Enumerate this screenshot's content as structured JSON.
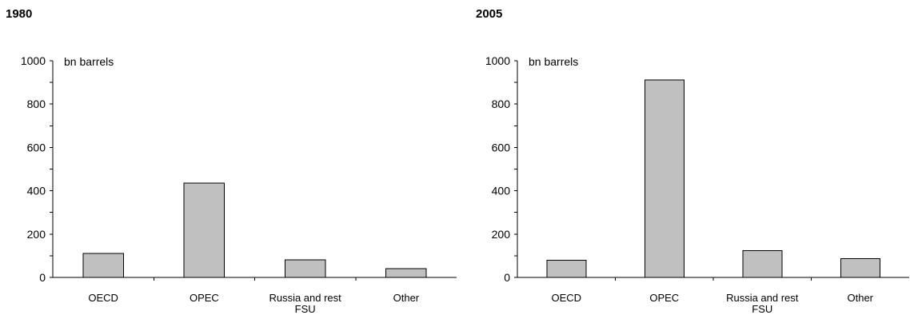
{
  "chart_data": [
    {
      "type": "bar",
      "title": "1980",
      "unit_label": "bn barrels",
      "categories": [
        [
          "OECD"
        ],
        [
          "OPEC"
        ],
        [
          "Russia and rest",
          "FSU"
        ],
        [
          "Other"
        ]
      ],
      "values": [
        110,
        435,
        82,
        40
      ],
      "ylim": [
        0,
        1000
      ],
      "yticks": [
        0,
        200,
        400,
        600,
        800,
        1000
      ],
      "ytick_labels": [
        "0",
        "200",
        "400",
        "600",
        "800",
        "1000"
      ],
      "grid": false,
      "legend": "none",
      "bar_color": "#c0c0c0"
    },
    {
      "type": "bar",
      "title": "2005",
      "unit_label": "bn barrels",
      "categories": [
        [
          "OECD"
        ],
        [
          "OPEC"
        ],
        [
          "Russia and rest",
          "FSU"
        ],
        [
          "Other"
        ]
      ],
      "values": [
        80,
        912,
        123,
        86
      ],
      "ylim": [
        0,
        1000
      ],
      "yticks": [
        0,
        200,
        400,
        600,
        800,
        1000
      ],
      "ytick_labels": [
        "0",
        "200",
        "400",
        "600",
        "800",
        "1000"
      ],
      "grid": false,
      "legend": "none",
      "bar_color": "#c0c0c0"
    }
  ]
}
